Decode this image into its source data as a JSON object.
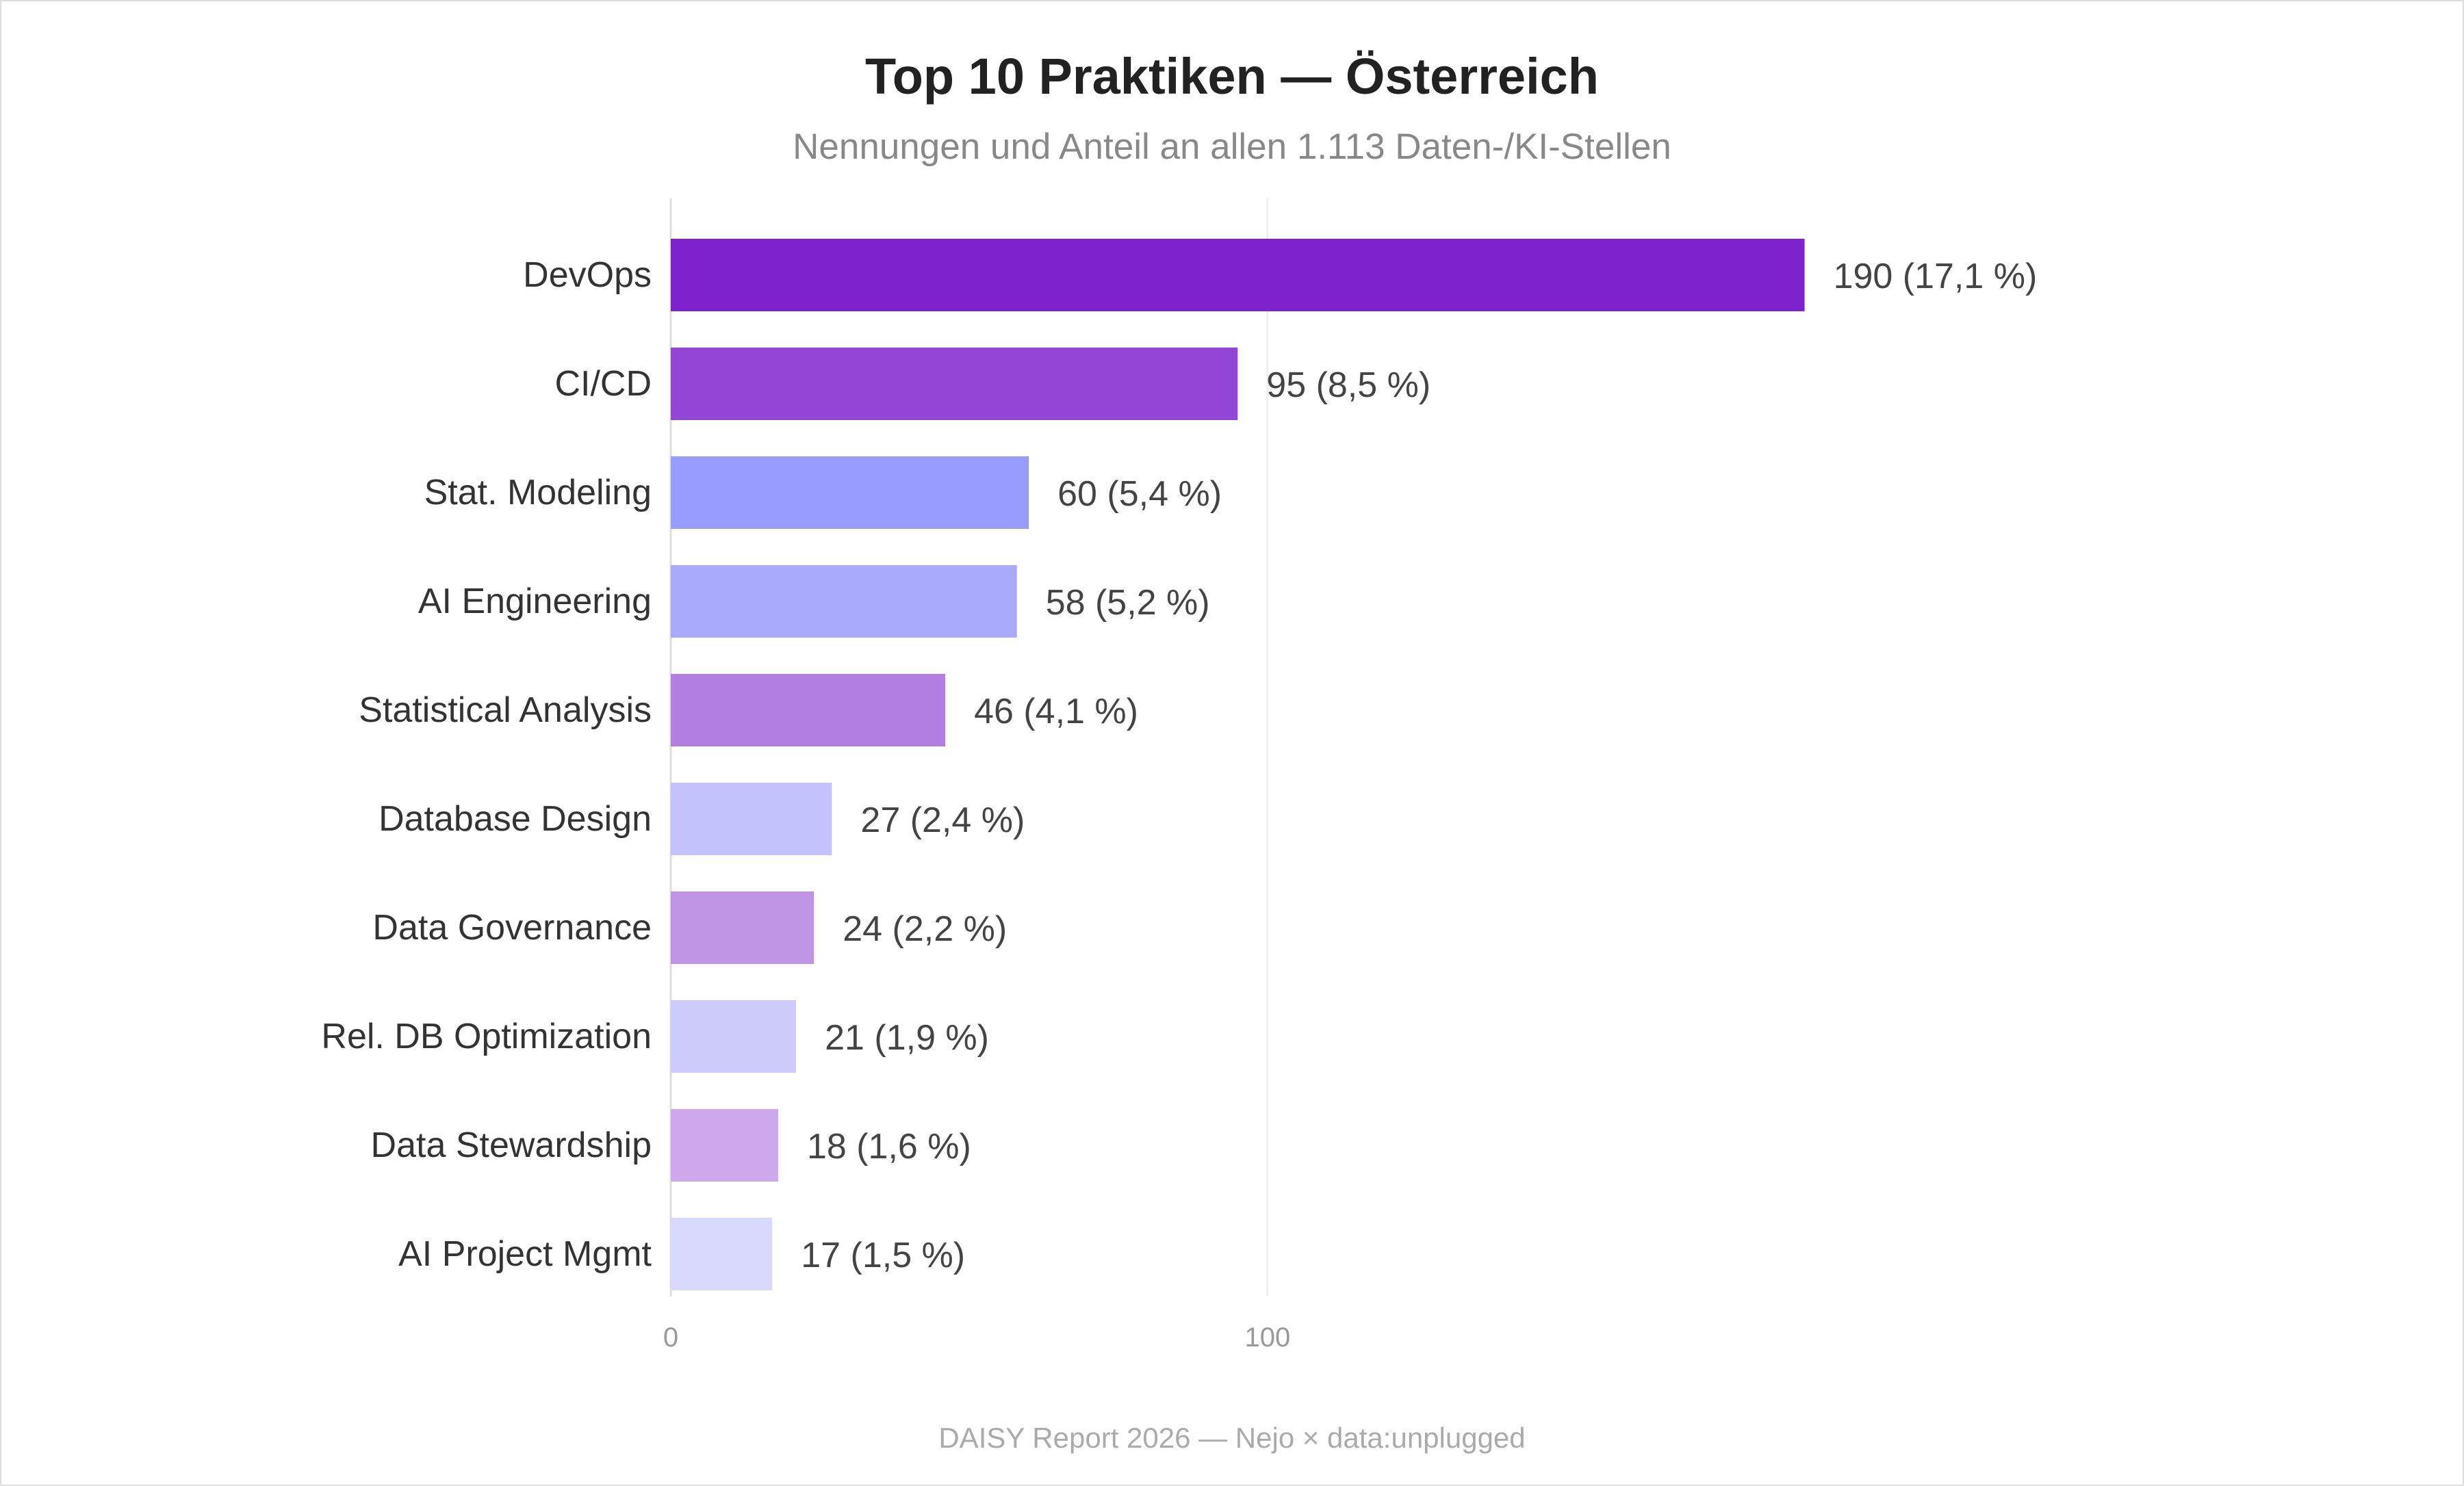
{
  "chart_data": {
    "type": "bar",
    "orientation": "horizontal",
    "title": "Top 10 Praktiken — Österreich",
    "subtitle": "Nennungen und Anteil an allen 1.113 Daten-/KI-Stellen",
    "footer": "DAISY Report 2026 — Nejo × data:unplugged",
    "categories": [
      "DevOps",
      "CI/CD",
      "Stat. Modeling",
      "AI Engineering",
      "Statistical Analysis",
      "Database Design",
      "Data Governance",
      "Rel. DB Optimization",
      "Data Stewardship",
      "AI Project Mgmt"
    ],
    "values": [
      190,
      95,
      60,
      58,
      46,
      27,
      24,
      21,
      18,
      17
    ],
    "value_labels": [
      "190 (17,1 %)",
      "95 (8,5 %)",
      "60 (5,4 %)",
      "58 (5,2 %)",
      "46 (4,1 %)",
      "27 (2,4 %)",
      "24 (2,2 %)",
      "21 (1,9 %)",
      "18 (1,6 %)",
      "17 (1,5 %)"
    ],
    "colors": [
      "#7e22ce",
      "#9346d6",
      "#989cfc",
      "#a9aafc",
      "#b27ee2",
      "#c3c2fc",
      "#c094e4",
      "#cccbfc",
      "#cda8ec",
      "#d8d7fc"
    ],
    "x_ticks": [
      0,
      100
    ],
    "x_tick_labels": [
      "0",
      "100"
    ],
    "xlim": [
      0,
      256
    ],
    "grid": true
  }
}
